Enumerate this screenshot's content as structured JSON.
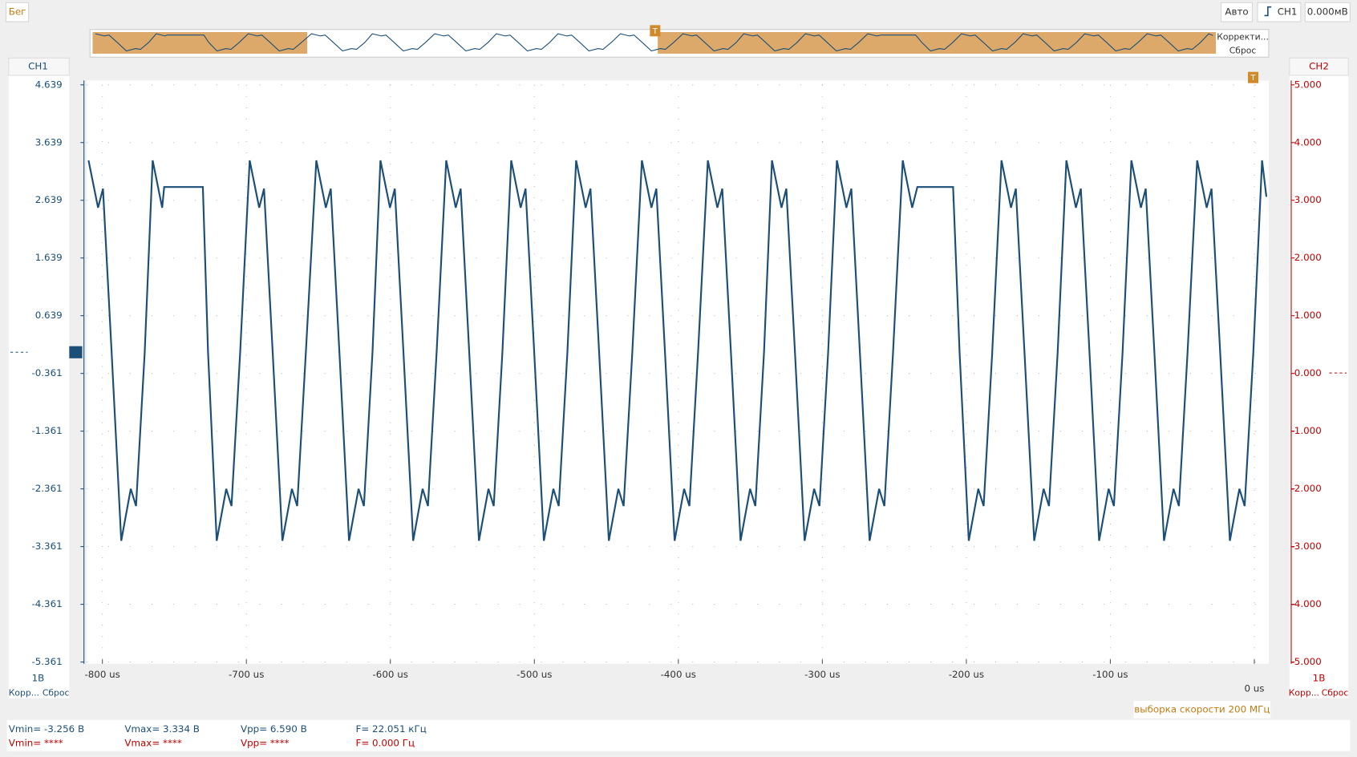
{
  "toolbar": {
    "run": "Бег",
    "mode": "Авто",
    "source": "CH1",
    "level": "0.000мВ"
  },
  "overview": {
    "correct": "Корректи...",
    "reset": "Сброс"
  },
  "ch1_panel": {
    "title": "CH1",
    "scale": "1В",
    "corr": "Корр...",
    "reset": "Сброс"
  },
  "ch2_panel": {
    "title": "CH2",
    "scale": "1В",
    "corr": "Корр...",
    "reset": "Сброс"
  },
  "sample_rate": "выборка скорости 200 МГц",
  "measurements": {
    "ch1": [
      "Vmin= -3.256 В",
      "Vmax= 3.334 В",
      "Vpp= 6.590 В",
      "F= 22.051 кГц"
    ],
    "ch2": [
      "Vmin= ****",
      "Vmax= ****",
      "Vpp= ****",
      "F= 0.000 Гц"
    ]
  },
  "chart_data": {
    "type": "line",
    "color": "#1b4f78",
    "y2color": "#c00000",
    "grid": true,
    "xlim": [
      -811,
      10
    ],
    "ylim": [
      -5.361,
      4.639
    ],
    "y2lim": [
      -5,
      5
    ],
    "xticks": [
      {
        "value": -800,
        "label": "-800 us"
      },
      {
        "value": -700,
        "label": "-700 us"
      },
      {
        "value": -600,
        "label": "-600 us"
      },
      {
        "value": -500,
        "label": "-500 us"
      },
      {
        "value": -400,
        "label": "-400 us"
      },
      {
        "value": -300,
        "label": "-300 us"
      },
      {
        "value": -200,
        "label": "-200 us"
      },
      {
        "value": -100,
        "label": "-100 us"
      },
      {
        "value": 0,
        "label": "0 us"
      }
    ],
    "yticks": [
      4.639,
      3.639,
      2.639,
      1.639,
      0.639,
      -0.361,
      -1.361,
      -2.361,
      -3.361,
      -4.361,
      -5.361
    ],
    "y2ticks": [
      {
        "value": 5,
        "label": "5.000"
      },
      {
        "value": 4,
        "label": "4.000"
      },
      {
        "value": 3,
        "label": "3.000"
      },
      {
        "value": 2,
        "label": "2.000"
      },
      {
        "value": 1,
        "label": "1.000"
      },
      {
        "value": 0,
        "label": "0.000"
      },
      {
        "value": -1,
        "label": "-1.000"
      },
      {
        "value": -2,
        "label": "-2.000"
      },
      {
        "value": -3,
        "label": "-3.000"
      },
      {
        "value": -4,
        "label": "-4.000"
      },
      {
        "value": -5,
        "label": "-5.000"
      }
    ],
    "x": [
      -809.6,
      -803.0,
      -799.6,
      -793.6,
      -786.9,
      -780.3,
      -776.6,
      -770.6,
      -765.1,
      -758.5,
      -757.1,
      -730.2,
      -726.6,
      -720.6,
      -714.0,
      -710.3,
      -704.3,
      -697.7,
      -691.1,
      -687.7,
      -681.7,
      -675.0,
      -668.4,
      -664.7,
      -658.7,
      -651.4,
      -644.8,
      -641.4,
      -635.4,
      -628.7,
      -622.1,
      -618.4,
      -612.4,
      -606.9,
      -600.3,
      -596.9,
      -590.9,
      -584.2,
      -577.6,
      -573.9,
      -567.9,
      -561.2,
      -554.6,
      -551.2,
      -545.2,
      -538.5,
      -531.9,
      -528.2,
      -522.2,
      -516.1,
      -509.5,
      -506.1,
      -500.1,
      -493.4,
      -486.8,
      -483.1,
      -477.1,
      -471.0,
      -464.4,
      -461.0,
      -455.0,
      -448.3,
      -441.7,
      -438.0,
      -432.0,
      -425.3,
      -418.7,
      -415.3,
      -409.3,
      -402.6,
      -396.0,
      -392.3,
      -386.3,
      -379.5,
      -372.9,
      -369.5,
      -363.5,
      -356.8,
      -350.2,
      -346.5,
      -340.5,
      -335.0,
      -328.4,
      -325.0,
      -319.0,
      -312.3,
      -305.7,
      -302.0,
      -296.0,
      -289.9,
      -283.3,
      -279.9,
      -273.9,
      -267.2,
      -260.6,
      -256.9,
      -250.9,
      -244.2,
      -237.6,
      -234.0,
      -209.2,
      -204.7,
      -198.3,
      -191.7,
      -188.0,
      -182.0,
      -175.6,
      -169.0,
      -165.6,
      -159.6,
      -152.9,
      -146.3,
      -142.6,
      -136.6,
      -130.5,
      -123.9,
      -120.5,
      -114.5,
      -107.8,
      -101.2,
      -97.5,
      -91.5,
      -85.4,
      -78.8,
      -75.4,
      -69.4,
      -62.7,
      -56.1,
      -52.4,
      -46.4,
      -39.7,
      -33.1,
      -29.7,
      -23.7,
      -17.0,
      -10.4,
      -6.7,
      -0.7,
      5.4,
      8.4
    ],
    "values": [
      3.33,
      2.51,
      2.84,
      0,
      -3.26,
      -2.36,
      -2.66,
      0,
      3.33,
      2.51,
      2.87,
      2.87,
      0,
      -3.26,
      -2.36,
      -2.66,
      0,
      3.33,
      2.51,
      2.84,
      0,
      -3.26,
      -2.36,
      -2.66,
      0,
      3.33,
      2.51,
      2.84,
      0,
      -3.26,
      -2.36,
      -2.66,
      0,
      3.33,
      2.51,
      2.84,
      0,
      -3.26,
      -2.36,
      -2.66,
      0,
      3.33,
      2.51,
      2.84,
      0,
      -3.26,
      -2.36,
      -2.66,
      0,
      3.33,
      2.51,
      2.84,
      0,
      -3.26,
      -2.36,
      -2.66,
      0,
      3.33,
      2.51,
      2.84,
      0,
      -3.26,
      -2.36,
      -2.66,
      0,
      3.33,
      2.51,
      2.84,
      0,
      -3.26,
      -2.36,
      -2.66,
      0,
      3.33,
      2.51,
      2.84,
      0,
      -3.26,
      -2.36,
      -2.66,
      0,
      3.33,
      2.51,
      2.84,
      0,
      -3.26,
      -2.36,
      -2.66,
      0,
      3.33,
      2.51,
      2.84,
      0,
      -3.26,
      -2.36,
      -2.66,
      0,
      3.33,
      2.51,
      2.87,
      2.87,
      0,
      -3.26,
      -2.36,
      -2.66,
      0,
      3.33,
      2.51,
      2.84,
      0,
      -3.26,
      -2.36,
      -2.66,
      0,
      3.33,
      2.51,
      2.84,
      0,
      -3.26,
      -2.36,
      -2.66,
      0,
      3.33,
      2.51,
      2.84,
      0,
      -3.26,
      -2.36,
      -2.66,
      0,
      3.33,
      2.51,
      2.84,
      0,
      -3.26,
      -2.36,
      -2.66,
      0,
      3.33,
      2.7
    ]
  }
}
